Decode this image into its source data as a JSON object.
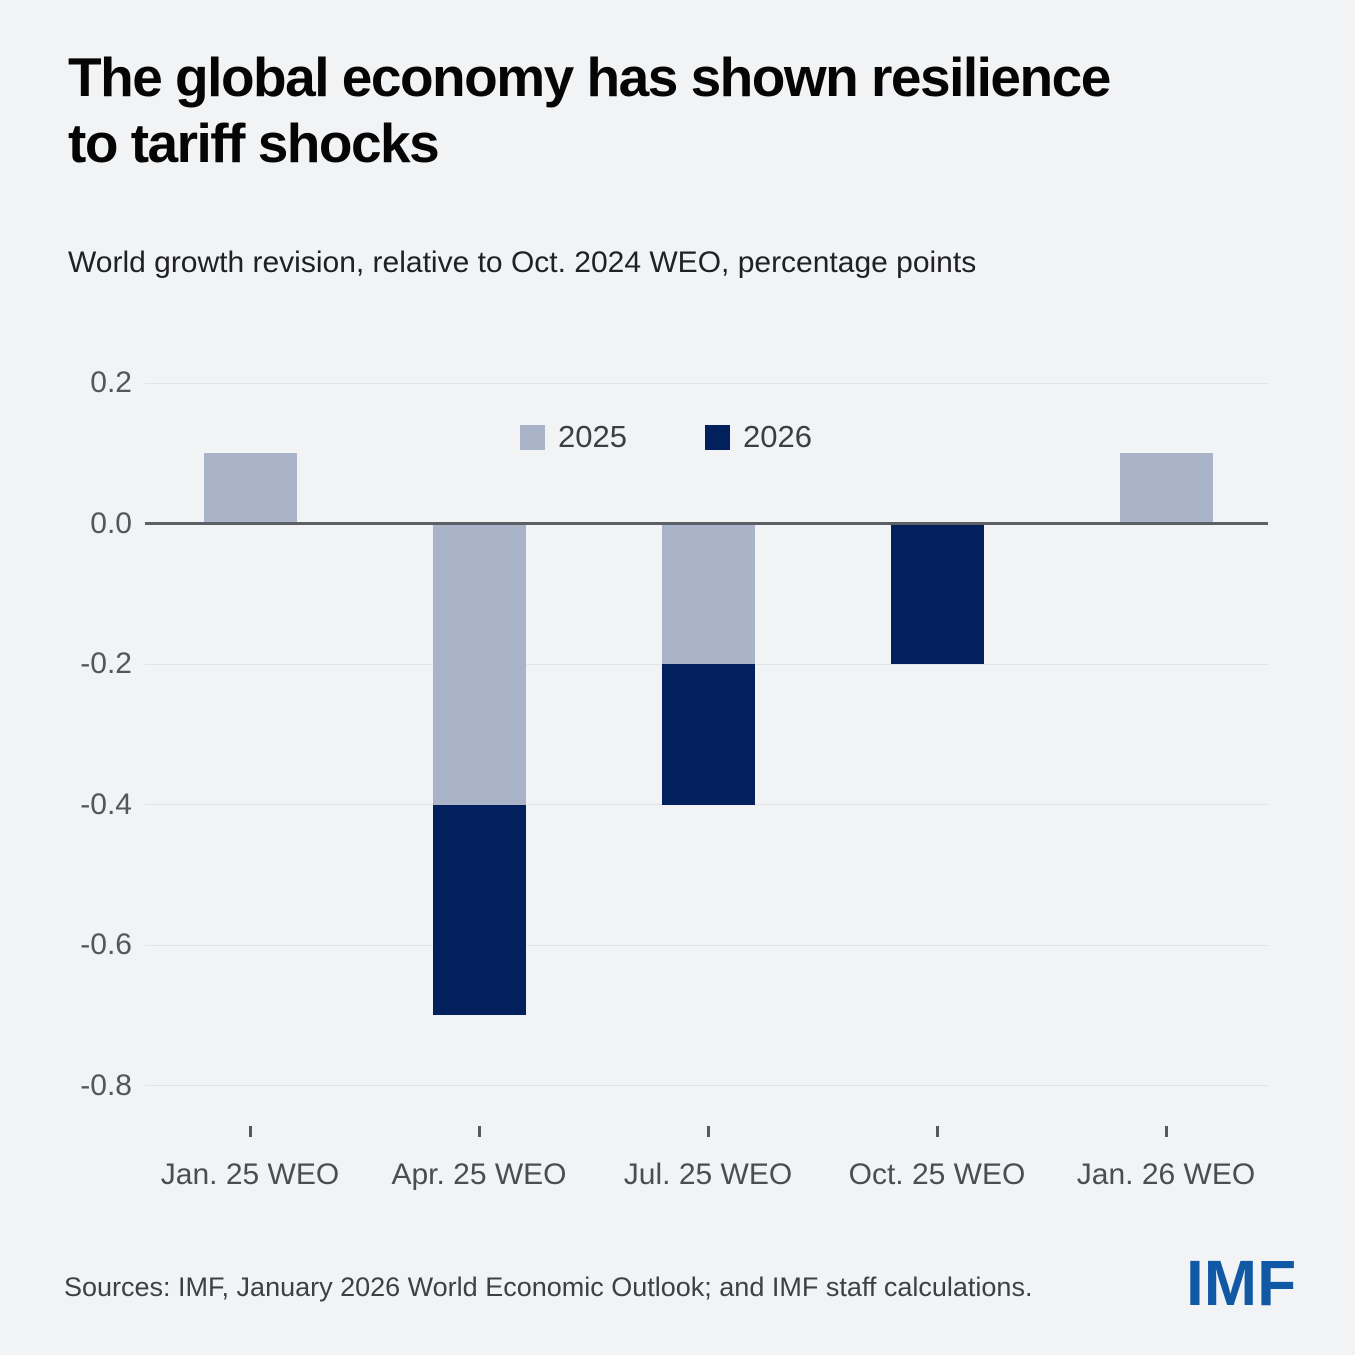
{
  "page": {
    "background": "#F2F3F5",
    "title_lines": [
      "The global economy has shown resilience",
      "to tariff shocks"
    ],
    "subtitle": "World growth revision, relative to Oct. 2024 WEO, percentage points",
    "footer": {
      "sources": "Sources: IMF, January 2026 World Economic Outlook; and IMF staff calculations.",
      "logo_text": "IMF",
      "logo_color": "#1159A5"
    }
  },
  "chart_data": {
    "type": "bar",
    "stacked": true,
    "title": "The global economy has shown resilience to tariff shocks",
    "subtitle": "World growth revision, relative to Oct. 2024 WEO, percentage points",
    "categories": [
      "Jan. 25 WEO",
      "Apr. 25 WEO",
      "Jul. 25 WEO",
      "Oct. 25 WEO",
      "Jan. 26 WEO"
    ],
    "series": [
      {
        "name": "2025",
        "color": "#A9B4C8",
        "values": [
          0.1,
          -0.4,
          -0.2,
          0,
          0.1
        ]
      },
      {
        "name": "2026",
        "color": "#03205E",
        "values": [
          0,
          -0.3,
          -0.2,
          -0.2,
          0
        ]
      }
    ],
    "ylim": [
      -0.8,
      0.2
    ],
    "baseline": 0,
    "grid": true,
    "legend_position": "top-center",
    "yticks": [
      {
        "value": 0.2,
        "label": "0.2"
      },
      {
        "value": 0,
        "label": "0.0"
      },
      {
        "value": -0.2,
        "label": "-0.2"
      },
      {
        "value": -0.4,
        "label": "-0.4"
      },
      {
        "value": -0.6,
        "label": "-0.6"
      },
      {
        "value": -0.8,
        "label": "-0.8"
      }
    ],
    "colors": {
      "grid": "#E2E4E8",
      "zero_axis": "#5C5F64",
      "y_tick_label": "#55565A",
      "x_tick_label": "#4C4D4F"
    }
  }
}
